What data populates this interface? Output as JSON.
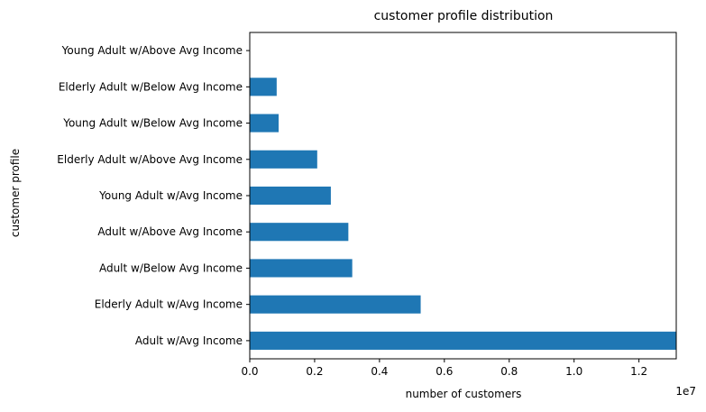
{
  "chart_data": {
    "type": "bar",
    "orientation": "horizontal",
    "title": "customer profile distribution",
    "xlabel": "number of customers",
    "ylabel": "customer profile",
    "x_offset_label": "1e7",
    "categories": [
      "Adult w/Avg Income",
      "Elderly Adult w/Avg Income",
      "Adult w/Below Avg Income",
      "Adult w/Above Avg Income",
      "Young Adult w/Avg Income",
      "Elderly Adult w/Above Avg Income",
      "Young Adult w/Below Avg Income",
      "Elderly Adult w/Below Avg Income",
      "Young Adult w/Above Avg Income"
    ],
    "values": [
      13150000,
      5270000,
      3160000,
      3040000,
      2500000,
      2080000,
      890000,
      830000,
      2000
    ],
    "xlim": [
      0,
      13150000
    ],
    "x_ticks": [
      0,
      2000000,
      4000000,
      6000000,
      8000000,
      10000000,
      12000000
    ],
    "x_tick_labels": [
      "0.0",
      "0.2",
      "0.4",
      "0.6",
      "0.8",
      "1.0",
      "1.2"
    ],
    "bar_color": "#1f77b4",
    "grid": false,
    "legend": false
  }
}
